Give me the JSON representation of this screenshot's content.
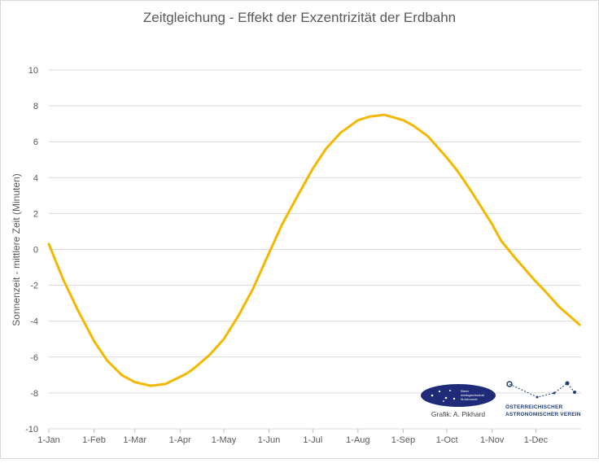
{
  "chart_data": {
    "type": "line",
    "title": "Zeitgleichung - Effekt der Exzentrizität der Erdbahn",
    "xlabel": "",
    "ylabel": "Sonnenzeit - mittlere Zeit (Minuten)",
    "ylim": [
      -10,
      10
    ],
    "yticks": [
      "-10",
      "-8",
      "-6",
      "-4",
      "-2",
      "0",
      "2",
      "4",
      "6",
      "8",
      "10"
    ],
    "xlim": [
      0,
      365
    ],
    "x_tick_labels": [
      "1-Jan",
      "1-Feb",
      "1-Mar",
      "1-Apr",
      "1-May",
      "1-Jun",
      "1-Jul",
      "1-Aug",
      "1-Sep",
      "1-Oct",
      "1-Nov",
      "1-Dec"
    ],
    "x_tick_days": [
      0,
      31,
      59,
      90,
      120,
      151,
      181,
      212,
      243,
      273,
      304,
      334
    ],
    "grid": true,
    "legend": "none",
    "series": [
      {
        "color": "#f5b800",
        "x": [
          0,
          10,
          20,
          31,
          40,
          50,
          59,
          70,
          80,
          90,
          95,
          100,
          110,
          120,
          130,
          140,
          151,
          160,
          170,
          181,
          190,
          200,
          212,
          220,
          230,
          243,
          250,
          260,
          273,
          280,
          290,
          304,
          310,
          320,
          334,
          340,
          350,
          364
        ],
        "y": [
          0.3,
          -1.7,
          -3.4,
          -5.1,
          -6.2,
          -7.0,
          -7.4,
          -7.6,
          -7.5,
          -7.1,
          -6.9,
          -6.6,
          -5.9,
          -5.0,
          -3.7,
          -2.2,
          -0.2,
          1.4,
          2.9,
          4.5,
          5.6,
          6.5,
          7.2,
          7.4,
          7.5,
          7.2,
          6.9,
          6.3,
          5.1,
          4.4,
          3.2,
          1.4,
          0.5,
          -0.5,
          -1.8,
          -2.3,
          -3.2,
          -4.2
        ]
      }
    ]
  },
  "logos": {
    "waa_line1": "Wiener",
    "waa_line2": "Arbeitsgemeinschaft",
    "waa_line3": "für Astronomie",
    "credit": "Grafik: A. Pikhard",
    "oav_line1": "ÖSTERREICHISCHER",
    "oav_line2": "ASTRONOMISCHER VEREIN"
  }
}
